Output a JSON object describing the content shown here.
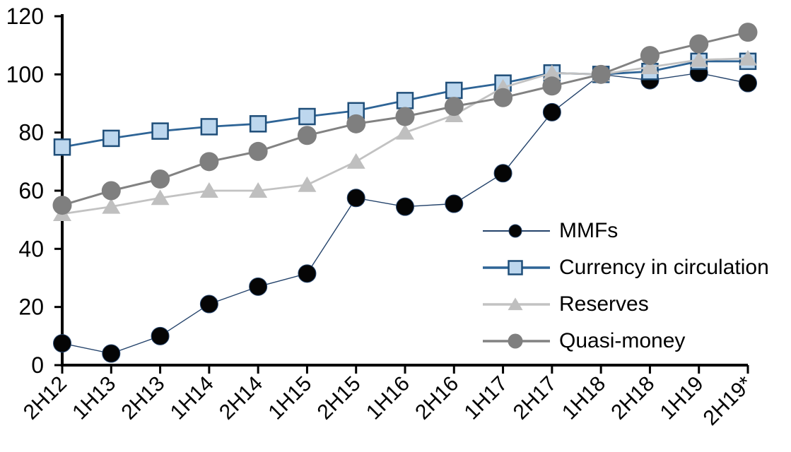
{
  "chart_data": {
    "type": "line",
    "title": "",
    "categories": [
      "2H12",
      "1H13",
      "2H13",
      "1H14",
      "2H14",
      "1H15",
      "2H15",
      "1H16",
      "2H16",
      "1H17",
      "2H17",
      "1H18",
      "2H18",
      "1H19",
      "2H19*"
    ],
    "series": [
      {
        "name": "MMFs",
        "marker": "circle",
        "line_color": "#24436b",
        "marker_fill": "#050505",
        "marker_stroke": "#24436b",
        "values": [
          7.5,
          4,
          10,
          21,
          27,
          31.5,
          57.5,
          54.5,
          55.5,
          66,
          87,
          100,
          98,
          100.5,
          97
        ]
      },
      {
        "name": "Currency in circulation",
        "marker": "square",
        "line_color": "#2e6496",
        "marker_fill": "#bdd7ee",
        "marker_stroke": "#1f4e79",
        "values": [
          75,
          78,
          80.5,
          82,
          83,
          85.5,
          87.5,
          91,
          94.5,
          97,
          100.5,
          100,
          101,
          104.5,
          104.5
        ]
      },
      {
        "name": "Reserves",
        "marker": "triangle",
        "line_color": "#c2c2c2",
        "marker_fill": "#bfbfbf",
        "marker_stroke": "#bfbfbf",
        "values": [
          52,
          54.5,
          57.5,
          60,
          60,
          62,
          70,
          80,
          86,
          95.5,
          100.5,
          100,
          102.5,
          105,
          105.5
        ]
      },
      {
        "name": "Quasi-money",
        "marker": "circle",
        "line_color": "#828282",
        "marker_fill": "#7f7f7f",
        "marker_stroke": "#7f7f7f",
        "values": [
          55,
          60,
          64,
          70,
          73.5,
          79,
          83,
          85.5,
          89,
          92,
          96,
          100,
          106.5,
          110.5,
          114.5
        ]
      }
    ],
    "y_axis": {
      "min": 0,
      "max": 120,
      "step": 20,
      "tick_labels": [
        "0",
        "20",
        "40",
        "60",
        "80",
        "100",
        "120"
      ]
    },
    "x_axis": {
      "label_rotation": -45
    },
    "legend": {
      "position": "inside-right",
      "entries": [
        "MMFs",
        "Currency in circulation",
        "Reserves",
        "Quasi-money"
      ]
    },
    "axis_color": "#000000",
    "background": "#ffffff",
    "grid": "off"
  }
}
